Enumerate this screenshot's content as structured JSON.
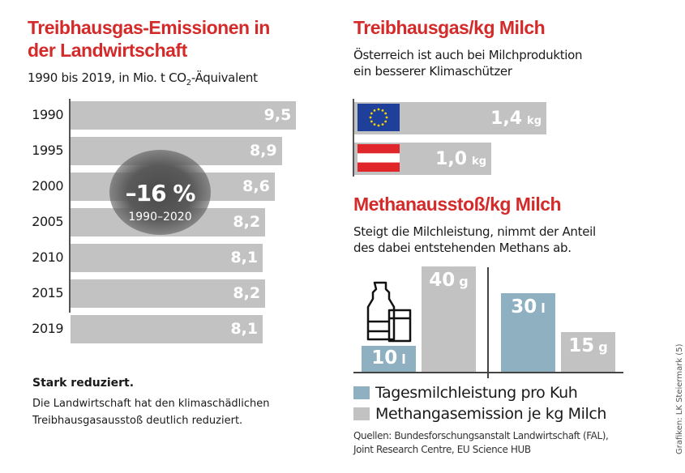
{
  "chart_data": [
    {
      "type": "bar",
      "orientation": "horizontal",
      "title": "Treibhausgas-Emissionen in der Landwirtschaft",
      "subtitle_pre": "1990 bis 2019, in Mio. t CO",
      "subtitle_sub": "2",
      "subtitle_post": "-Äquivalent",
      "categories": [
        "1990",
        "1995",
        "2000",
        "2005",
        "2010",
        "2015",
        "2019"
      ],
      "values": [
        9.5,
        8.9,
        8.6,
        8.2,
        8.1,
        8.2,
        8.1
      ],
      "labels": [
        "9,5",
        "8,9",
        "8,6",
        "8,2",
        "8,1",
        "8,2",
        "8,1"
      ],
      "annotation": {
        "value": "–16 %",
        "period": "1990–2020"
      },
      "bar_color": "#c2c2c2"
    },
    {
      "type": "bar",
      "orientation": "horizontal",
      "title": "Treibhausgas/kg Milch",
      "subtitle": [
        "Österreich ist auch bei Milchproduktion",
        "ein besserer Klimaschützer"
      ],
      "categories": [
        "EU",
        "Österreich"
      ],
      "icons": [
        "eu-flag-icon",
        "austria-flag-icon"
      ],
      "values": [
        1.4,
        1.0
      ],
      "labels": [
        "1,4",
        "1,0"
      ],
      "unit": "kg",
      "bar_color": "#c2c2c2"
    },
    {
      "type": "bar",
      "title": "Methanausstoß/kg Milch",
      "subtitle": [
        "Steigt die Milchleistung, nimmt der Anteil",
        "des dabei entstehenden Methans ab."
      ],
      "groups": [
        {
          "values": [
            10,
            40
          ],
          "labels": [
            "10",
            "40"
          ],
          "units": [
            "l",
            "g"
          ]
        },
        {
          "values": [
            30,
            15
          ],
          "labels": [
            "30",
            "15"
          ],
          "units": [
            "l",
            "g"
          ]
        }
      ],
      "series": [
        {
          "name": "Tagesmilchleistung pro Kuh",
          "color": "#8fb0c0"
        },
        {
          "name": "Methangasemission je kg Milch",
          "color": "#c2c2c2"
        }
      ]
    }
  ],
  "note": {
    "heading": "Stark reduziert.",
    "text": [
      "Die Landwirtschaft hat den klimaschädlichen",
      "Treibhausgasausstoß deutlich reduziert."
    ]
  },
  "sources": [
    "Quellen: Bundesforschungsanstalt Landwirtschaft (FAL),",
    "Joint Research Centre, EU Science HUB"
  ],
  "credit": "Grafiken: LK Steiermark (5)",
  "accent_color": "#d42a2a"
}
